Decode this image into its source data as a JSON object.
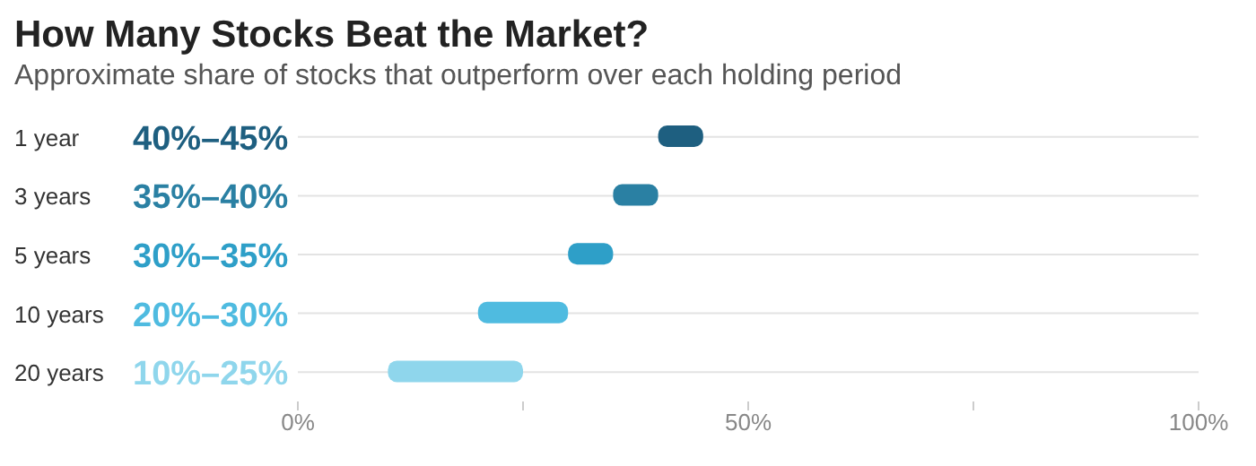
{
  "chart_data": {
    "type": "bar",
    "orientation": "horizontal",
    "title": "How Many Stocks Beat the Market?",
    "subtitle": "Approximate share of stocks that outperform over each holding period",
    "categories": [
      "1 year",
      "3 years",
      "5 years",
      "10 years",
      "20 years"
    ],
    "base": [
      40,
      35,
      30,
      20,
      10
    ],
    "values": [
      5,
      5,
      5,
      10,
      15
    ],
    "annotations": [
      "40%–45%",
      "35%–40%",
      "30%–35%",
      "20%–30%",
      "10%–25%"
    ],
    "colors": [
      "#1e5f80",
      "#2a80a3",
      "#2e9fc8",
      "#4fbbe0",
      "#8fd6ec"
    ],
    "xlim": [
      0,
      100
    ],
    "xticks": [
      {
        "value": 0,
        "label": "0%"
      },
      {
        "value": 25,
        "label": null
      },
      {
        "value": 50,
        "label": "50%"
      },
      {
        "value": 75,
        "label": null
      },
      {
        "value": 100,
        "label": "100%"
      }
    ],
    "grid": "y"
  }
}
